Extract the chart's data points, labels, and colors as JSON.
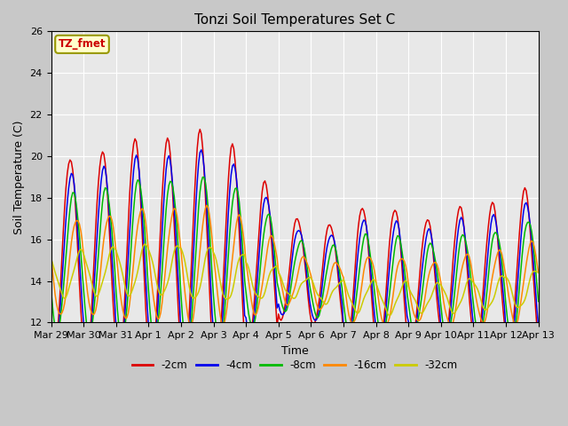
{
  "title": "Tonzi Soil Temperatures Set C",
  "xlabel": "Time",
  "ylabel": "Soil Temperature (C)",
  "annotation": "TZ_fmet",
  "ylim": [
    12,
    26
  ],
  "series_labels": [
    "-2cm",
    "-4cm",
    "-8cm",
    "-16cm",
    "-32cm"
  ],
  "series_colors": [
    "#dd0000",
    "#0000ee",
    "#00bb00",
    "#ff8800",
    "#cccc00"
  ],
  "xtick_labels": [
    "Mar 29",
    "Mar 30",
    "Mar 31",
    "Apr 1",
    "Apr 2",
    "Apr 3",
    "Apr 4",
    "Apr 5",
    "Apr 6",
    "Apr 7",
    "Apr 8",
    "Apr 9",
    "Apr 10",
    "Apr 11",
    "Apr 12",
    "Apr 13"
  ],
  "fig_bg": "#c8c8c8",
  "ax_bg": "#e8e8e8",
  "grid_color": "#ffffff"
}
